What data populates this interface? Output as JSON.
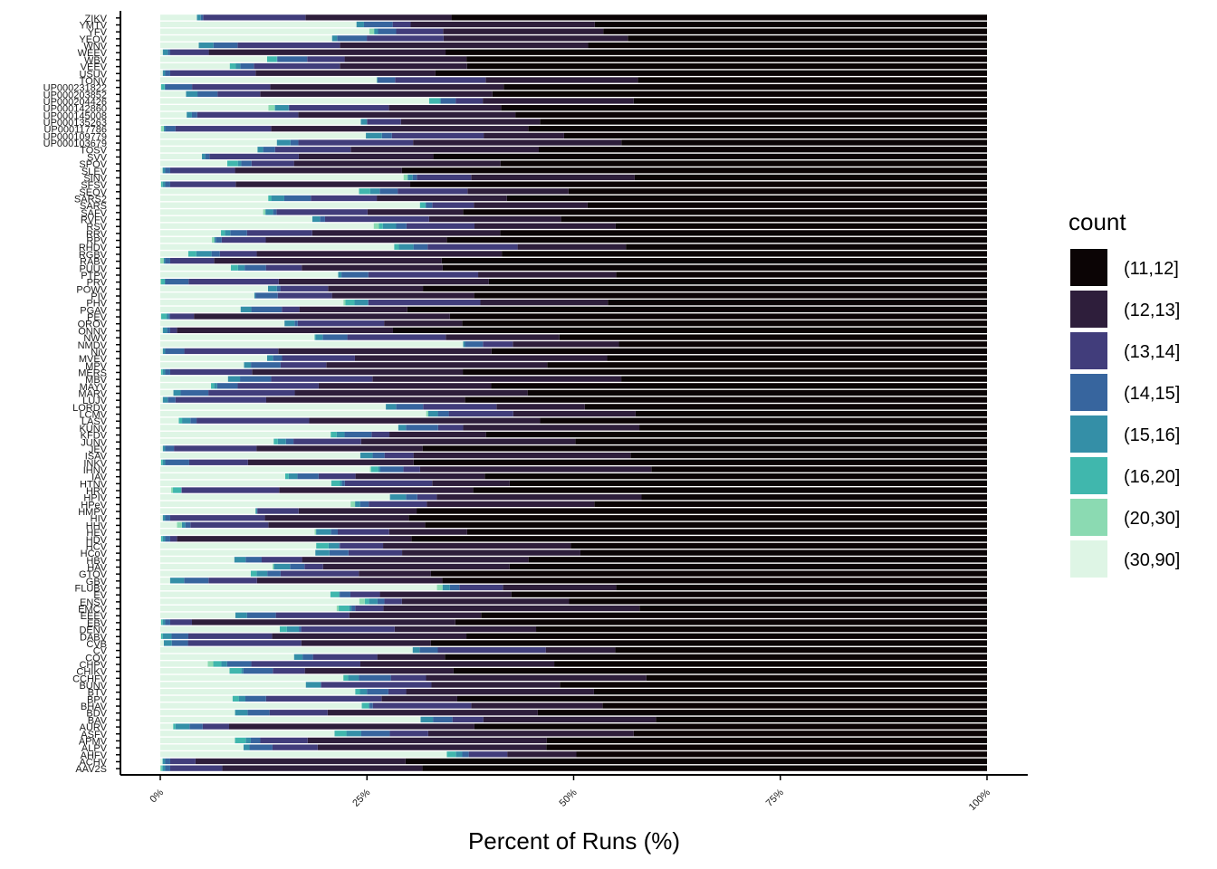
{
  "chart_data": {
    "type": "bar",
    "orientation": "horizontal",
    "stacked": true,
    "xlabel": "Percent of Runs (%)",
    "ylabel": "",
    "xlim": [
      0,
      100
    ],
    "x_ticks": [
      "0%",
      "25%",
      "50%",
      "75%",
      "100%"
    ],
    "x_tick_values": [
      0,
      25,
      50,
      75,
      100
    ],
    "categories": [
      "ZIKV",
      "YMTV",
      "YFV",
      "YEOV",
      "WNV",
      "WEEV",
      "WBV",
      "VEEV",
      "USUV",
      "TONV",
      "UP000231822",
      "UP000203852",
      "UP000204426",
      "UP000142860",
      "UP000145008",
      "UP000135263",
      "UP000117786",
      "UP000109779",
      "UP000103679",
      "TOSV",
      "SVV",
      "SPOV",
      "SLEV",
      "SINV",
      "SFSV",
      "SEOV",
      "SARS2",
      "SARS",
      "SAFV",
      "RVFV",
      "RSV",
      "RRV",
      "RPV",
      "RHDV",
      "RGBV",
      "RABV",
      "PUUV",
      "PTPV",
      "PRV",
      "POWV",
      "PIV",
      "PHV",
      "PGAV",
      "PEV",
      "OROV",
      "ONNV",
      "NWV",
      "NMDV",
      "NiV",
      "MVEV",
      "MPV",
      "MERS",
      "MBV",
      "MAYV",
      "MARV",
      "LUJV",
      "LORDV",
      "LCMV",
      "LASV",
      "KUNV",
      "KFDV",
      "JUNV",
      "JEV",
      "ISAV",
      "INKV",
      "IHNV",
      "IAV",
      "HTNV",
      "HRV",
      "HPIV",
      "HPeV",
      "HMPV",
      "HIV",
      "HHV",
      "HEV",
      "HDV",
      "HCV",
      "HCoV",
      "HBV",
      "HAV",
      "GTOV",
      "GBV",
      "FLUBV",
      "EV",
      "ENSV",
      "EMCV",
      "EEEV",
      "EBV",
      "DENV",
      "DABV",
      "CVB",
      "CV",
      "COV",
      "CHPV",
      "CHIKV",
      "CCHFV",
      "BUNV",
      "BTV",
      "BPV",
      "BHAV",
      "BDV",
      "BAV",
      "AURV",
      "ASFV",
      "APMV",
      "ALPV",
      "AHFV",
      "ACHV",
      "AAV2S"
    ],
    "bins": [
      "(11,12]",
      "(12,13]",
      "(13,14]",
      "(14,15]",
      "(15,16]",
      "(16,20]",
      "(20,30]",
      "(30,90]"
    ],
    "legend_title": "count",
    "legend_position": "right",
    "colors": [
      "#0b0405",
      "#2e1e3b",
      "#413d7b",
      "#37659e",
      "#348fa7",
      "#40b7ad",
      "#8bdab2",
      "#def5e5"
    ],
    "grid": false
  }
}
